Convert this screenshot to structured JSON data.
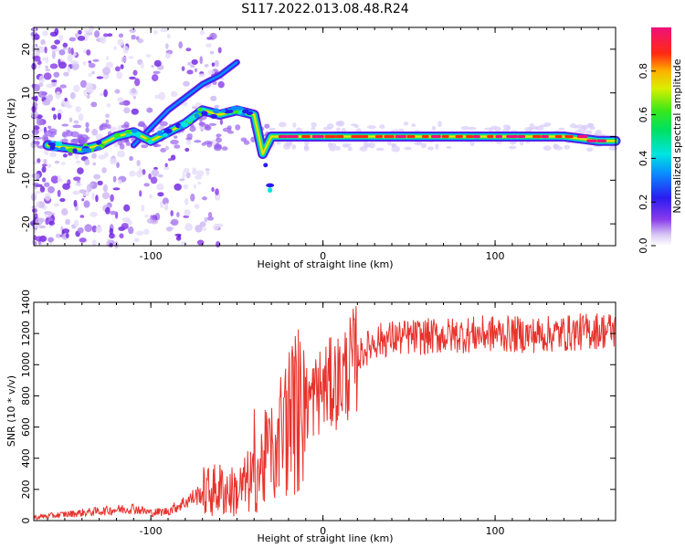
{
  "figure": {
    "title": "S117.2022.013.08.48.R24"
  },
  "chart_data": [
    {
      "type": "heatmap",
      "subtype": "spectrogram",
      "xlabel": "Height of straight line (km)",
      "ylabel": "Frequency (Hz)",
      "xlim": [
        -168,
        170
      ],
      "ylim": [
        -25,
        25
      ],
      "xticks": [
        -100,
        0,
        100
      ],
      "yticks": [
        -20,
        -10,
        0,
        10,
        20
      ],
      "colorbar": {
        "label": "Normalized spectral amplitude",
        "range": [
          0,
          1
        ],
        "ticks": [
          "0.0",
          "0.2",
          "0.4",
          "0.6",
          "0.8"
        ],
        "colormap": "rainbow (white-violet-blue-cyan-green-yellow-red-magenta)"
      },
      "features": {
        "main_line": {
          "x": [
            -160,
            -150,
            -140,
            -130,
            -120,
            -110,
            -100,
            -90,
            -80,
            -70,
            -60,
            -50,
            -40,
            -35,
            -30,
            -20,
            0,
            20,
            40,
            60,
            80,
            100,
            120,
            140,
            160,
            170
          ],
          "y": [
            -2,
            -2.5,
            -3,
            -2,
            0,
            1,
            -1,
            1,
            3,
            6,
            5,
            6,
            5,
            -4,
            0,
            0,
            0,
            0,
            0,
            0,
            0,
            0,
            0,
            0,
            -1,
            -1
          ]
        },
        "secondary_line": {
          "x": [
            -110,
            -100,
            -90,
            -80,
            -70,
            -60,
            -50
          ],
          "y": [
            -2,
            2,
            6,
            9,
            12,
            14,
            17
          ]
        }
      }
    },
    {
      "type": "line",
      "xlabel": "Height of straight line (km)",
      "ylabel": "SNR (10 * v/v)",
      "xlim": [
        -168,
        170
      ],
      "ylim": [
        0,
        1400
      ],
      "xticks": [
        -100,
        0,
        100
      ],
      "yticks": [
        0,
        200,
        400,
        600,
        800,
        1000,
        1200,
        1400
      ],
      "series": [
        {
          "color": "#e8322c",
          "x": [
            -168,
            -150,
            -130,
            -110,
            -100,
            -90,
            -80,
            -70,
            -60,
            -50,
            -40,
            -30,
            -20,
            -10,
            0,
            10,
            20,
            30,
            40,
            60,
            80,
            100,
            120,
            140,
            160,
            170
          ],
          "y": [
            20,
            40,
            60,
            80,
            50,
            60,
            120,
            180,
            200,
            180,
            280,
            450,
            650,
            750,
            850,
            900,
            1050,
            1150,
            1170,
            1180,
            1190,
            1200,
            1190,
            1200,
            1220,
            1220
          ]
        }
      ]
    }
  ]
}
